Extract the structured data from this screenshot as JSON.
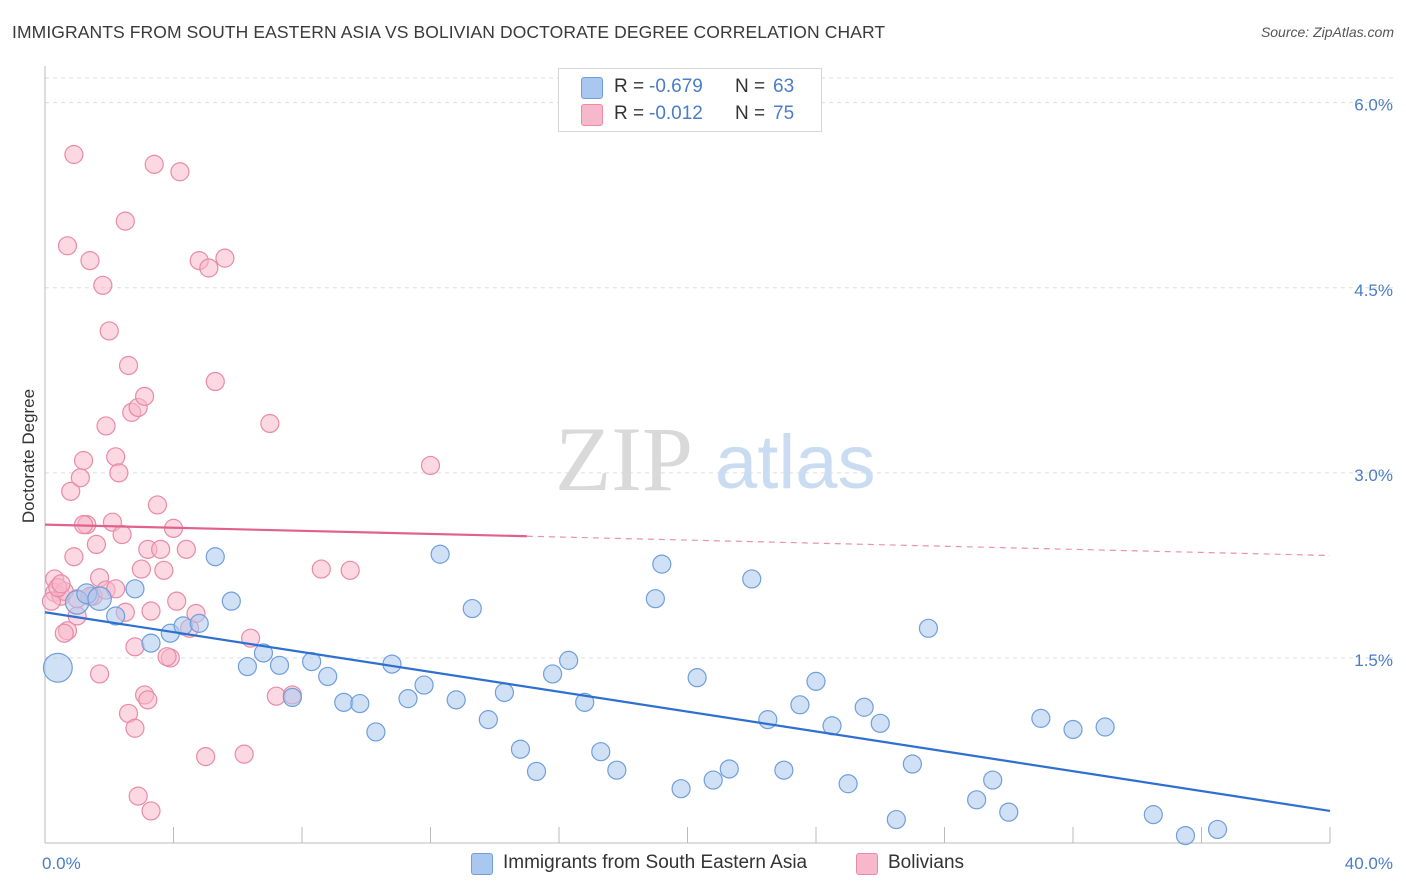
{
  "title": "IMMIGRANTS FROM SOUTH EASTERN ASIA VS BOLIVIAN DOCTORATE DEGREE CORRELATION CHART",
  "source": "Source: ZipAtlas.com",
  "watermark": {
    "zip": "ZIP",
    "atlas": "atlas"
  },
  "legend": {
    "series1": {
      "r_label": "R =",
      "r_value": "-0.679",
      "n_label": "N =",
      "n_value": "63"
    },
    "series2": {
      "r_label": "R =",
      "r_value": "-0.012",
      "n_label": "N =",
      "n_value": "75"
    }
  },
  "bottom_legend": {
    "series1": "Immigrants from South Eastern Asia",
    "series2": "Bolivians"
  },
  "colors": {
    "blue_fill": "#aac8ef",
    "blue_stroke": "#6f9fdc",
    "blue_line": "#2f6fd0",
    "pink_fill": "#f7b8cb",
    "pink_stroke": "#e98aa8",
    "pink_line": "#e0628c",
    "grid": "#dddddd",
    "axis_text": "#4a7cc7"
  },
  "chart_data": {
    "type": "scatter",
    "title": "IMMIGRANTS FROM SOUTH EASTERN ASIA VS BOLIVIAN DOCTORATE DEGREE CORRELATION CHART",
    "xlabel": "",
    "ylabel": "Doctorate Degree",
    "xlim": [
      0,
      40
    ],
    "ylim": [
      0,
      6.2
    ],
    "x_tick_labels": [
      "0.0%",
      "40.0%"
    ],
    "y_ticks": [
      1.5,
      3.0,
      4.5,
      6.0
    ],
    "y_tick_labels": [
      "1.5%",
      "3.0%",
      "4.5%",
      "6.0%"
    ],
    "series": [
      {
        "name": "Immigrants from South Eastern Asia",
        "r": -0.679,
        "n": 63,
        "trend": {
          "x0": 0,
          "y0": 1.87,
          "x1": 40,
          "y1": 0.26,
          "solid_until": 40
        },
        "points": [
          [
            0.4,
            1.42,
            1.6
          ],
          [
            1.0,
            1.95,
            1.3
          ],
          [
            1.3,
            2.02,
            1.1
          ],
          [
            1.7,
            1.98,
            1.3
          ],
          [
            2.2,
            1.84,
            1
          ],
          [
            2.8,
            2.06,
            1
          ],
          [
            3.3,
            1.62,
            1
          ],
          [
            3.9,
            1.7,
            1
          ],
          [
            4.3,
            1.76,
            1
          ],
          [
            4.8,
            1.78,
            1
          ],
          [
            5.3,
            2.32,
            1
          ],
          [
            5.8,
            1.96,
            1
          ],
          [
            6.3,
            1.43,
            1
          ],
          [
            6.8,
            1.54,
            1
          ],
          [
            7.3,
            1.44,
            1
          ],
          [
            7.7,
            1.18,
            1
          ],
          [
            8.3,
            1.47,
            1
          ],
          [
            8.8,
            1.35,
            1
          ],
          [
            9.3,
            1.14,
            1
          ],
          [
            9.8,
            1.13,
            1
          ],
          [
            10.3,
            0.9,
            1
          ],
          [
            10.8,
            1.45,
            1
          ],
          [
            11.3,
            1.17,
            1
          ],
          [
            11.8,
            1.28,
            1
          ],
          [
            12.3,
            2.34,
            1
          ],
          [
            12.8,
            1.16,
            1
          ],
          [
            13.3,
            1.9,
            1
          ],
          [
            13.8,
            1.0,
            1
          ],
          [
            14.3,
            1.22,
            1
          ],
          [
            14.8,
            0.76,
            1
          ],
          [
            15.3,
            0.58,
            1
          ],
          [
            15.8,
            1.37,
            1
          ],
          [
            16.3,
            1.48,
            1
          ],
          [
            16.8,
            1.14,
            1
          ],
          [
            17.3,
            0.74,
            1
          ],
          [
            17.8,
            0.59,
            1
          ],
          [
            19.0,
            1.98,
            1
          ],
          [
            19.2,
            2.26,
            1
          ],
          [
            19.8,
            0.44,
            1
          ],
          [
            20.3,
            1.34,
            1
          ],
          [
            20.8,
            0.51,
            1
          ],
          [
            21.3,
            0.6,
            1
          ],
          [
            22.0,
            2.14,
            1
          ],
          [
            22.5,
            1.0,
            1
          ],
          [
            23.0,
            0.59,
            1
          ],
          [
            23.5,
            1.12,
            1
          ],
          [
            24.0,
            1.31,
            1
          ],
          [
            24.5,
            0.95,
            1
          ],
          [
            25.0,
            0.48,
            1
          ],
          [
            25.5,
            1.1,
            1
          ],
          [
            26.0,
            0.97,
            1
          ],
          [
            26.5,
            0.19,
            1
          ],
          [
            27.0,
            0.64,
            1
          ],
          [
            27.5,
            1.74,
            1
          ],
          [
            29.0,
            0.35,
            1
          ],
          [
            29.5,
            0.51,
            1
          ],
          [
            30.0,
            0.25,
            1
          ],
          [
            31.0,
            1.01,
            1
          ],
          [
            32.0,
            0.92,
            1
          ],
          [
            33.0,
            0.94,
            1
          ],
          [
            34.5,
            0.23,
            1
          ],
          [
            35.5,
            0.06,
            1
          ],
          [
            36.5,
            0.11,
            1
          ]
        ]
      },
      {
        "name": "Bolivians",
        "r": -0.012,
        "n": 75,
        "trend": {
          "x0": 0,
          "y0": 2.58,
          "x1": 40,
          "y1": 2.33,
          "solid_until": 15
        },
        "points": [
          [
            0.3,
            2.14,
            1
          ],
          [
            0.3,
            2.03,
            1
          ],
          [
            0.5,
            2.0,
            1
          ],
          [
            0.6,
            2.04,
            1
          ],
          [
            0.7,
            1.72,
            1
          ],
          [
            0.8,
            2.85,
            1
          ],
          [
            0.9,
            2.32,
            1
          ],
          [
            1.0,
            1.84,
            1
          ],
          [
            1.1,
            2.96,
            1
          ],
          [
            1.2,
            3.1,
            1
          ],
          [
            1.3,
            2.58,
            1
          ],
          [
            1.4,
            4.72,
            1
          ],
          [
            1.5,
            2.0,
            1
          ],
          [
            1.6,
            2.42,
            1
          ],
          [
            1.7,
            1.37,
            1
          ],
          [
            1.8,
            4.52,
            1
          ],
          [
            1.9,
            3.38,
            1
          ],
          [
            2.0,
            4.15,
            1
          ],
          [
            2.1,
            2.6,
            1
          ],
          [
            2.2,
            3.13,
            1
          ],
          [
            2.3,
            3.0,
            1
          ],
          [
            2.4,
            2.5,
            1
          ],
          [
            2.5,
            1.87,
            1
          ],
          [
            2.6,
            3.87,
            1
          ],
          [
            2.7,
            3.49,
            1
          ],
          [
            2.8,
            1.59,
            1
          ],
          [
            2.9,
            3.53,
            1
          ],
          [
            3.0,
            2.22,
            1
          ],
          [
            3.1,
            3.62,
            1
          ],
          [
            3.2,
            2.38,
            1
          ],
          [
            3.3,
            1.88,
            1
          ],
          [
            3.4,
            5.5,
            1
          ],
          [
            3.5,
            2.74,
            1
          ],
          [
            3.6,
            2.38,
            1
          ],
          [
            3.7,
            2.21,
            1
          ],
          [
            3.9,
            1.5,
            1
          ],
          [
            4.0,
            2.55,
            1
          ],
          [
            4.1,
            1.96,
            1
          ],
          [
            4.2,
            5.44,
            1
          ],
          [
            4.4,
            2.38,
            1
          ],
          [
            4.5,
            1.74,
            1
          ],
          [
            4.7,
            1.86,
            1
          ],
          [
            4.8,
            4.72,
            1
          ],
          [
            5.0,
            0.7,
            1
          ],
          [
            5.1,
            4.66,
            1
          ],
          [
            5.3,
            3.74,
            1
          ],
          [
            5.6,
            4.74,
            1
          ],
          [
            6.2,
            0.72,
            1
          ],
          [
            6.4,
            1.66,
            1
          ],
          [
            7.0,
            3.4,
            1
          ],
          [
            7.2,
            1.19,
            1
          ],
          [
            7.7,
            1.2,
            1
          ],
          [
            8.6,
            2.22,
            1
          ],
          [
            9.5,
            2.21,
            1
          ],
          [
            12.0,
            3.06,
            1
          ],
          [
            0.2,
            1.96,
            1
          ],
          [
            0.4,
            2.07,
            1
          ],
          [
            0.5,
            2.1,
            1
          ],
          [
            0.6,
            1.7,
            1
          ],
          [
            0.7,
            4.84,
            1
          ],
          [
            0.9,
            5.58,
            1
          ],
          [
            1.0,
            1.98,
            1
          ],
          [
            1.2,
            2.58,
            1
          ],
          [
            1.4,
            2.0,
            1
          ],
          [
            1.7,
            2.15,
            1
          ],
          [
            1.9,
            2.05,
            1
          ],
          [
            2.2,
            2.06,
            1
          ],
          [
            2.5,
            5.04,
            1
          ],
          [
            2.6,
            1.05,
            1
          ],
          [
            2.8,
            0.93,
            1
          ],
          [
            2.9,
            0.38,
            1
          ],
          [
            3.1,
            1.2,
            1
          ],
          [
            3.2,
            1.16,
            1
          ],
          [
            3.3,
            0.26,
            1
          ],
          [
            3.8,
            1.51,
            1
          ]
        ]
      }
    ]
  }
}
